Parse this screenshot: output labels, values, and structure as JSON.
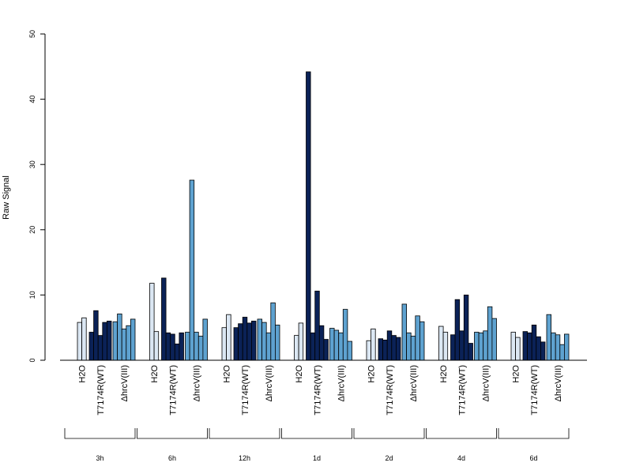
{
  "chart_data": {
    "type": "bar",
    "ylabel": "Raw Signal",
    "ylim": [
      0,
      50
    ],
    "yticks": [
      "0",
      "10",
      "20",
      "30",
      "40",
      "50"
    ],
    "conditions": [
      "H2O",
      "T7174R(WT)",
      "ΔhrcV(III)"
    ],
    "colors": {
      "H2O": "#dbe7f3",
      "T7174R(WT)": "#0b2257",
      "ΔhrcV(III)": "#5ea2d0"
    },
    "groups": [
      {
        "label": "3h",
        "values": [
          [
            5.8,
            6.5
          ],
          [
            4.3,
            7.6,
            3.8,
            5.8,
            6.0
          ],
          [
            5.9,
            7.1,
            4.8,
            5.3,
            6.3
          ]
        ]
      },
      {
        "label": "6h",
        "values": [
          [
            11.8,
            4.4
          ],
          [
            12.6,
            4.2,
            4.0,
            2.5,
            4.2
          ],
          [
            4.3,
            27.6,
            4.3,
            3.7,
            6.3
          ]
        ]
      },
      {
        "label": "12h",
        "values": [
          [
            5.0,
            7.0
          ],
          [
            5.0,
            5.6,
            6.6,
            5.7,
            6.0
          ],
          [
            6.3,
            5.8,
            4.2,
            8.8,
            5.4
          ]
        ]
      },
      {
        "label": "1d",
        "values": [
          [
            3.8,
            5.7
          ],
          [
            44.2,
            4.2,
            10.6,
            5.3,
            3.2
          ],
          [
            4.9,
            4.6,
            4.2,
            7.8,
            2.9
          ]
        ]
      },
      {
        "label": "2d",
        "values": [
          [
            3.0,
            4.8
          ],
          [
            3.3,
            3.1,
            4.5,
            3.8,
            3.5
          ],
          [
            8.6,
            4.2,
            3.7,
            6.8,
            5.9
          ]
        ]
      },
      {
        "label": "4d",
        "values": [
          [
            5.2,
            4.3
          ],
          [
            3.9,
            9.3,
            4.5,
            10.0,
            2.6
          ],
          [
            4.3,
            4.2,
            4.5,
            8.2,
            6.4
          ]
        ]
      },
      {
        "label": "6d",
        "values": [
          [
            4.3,
            3.5
          ],
          [
            4.4,
            4.2,
            5.4,
            3.6,
            2.8
          ],
          [
            7.0,
            4.2,
            3.9,
            2.4,
            4.0
          ]
        ]
      }
    ]
  }
}
